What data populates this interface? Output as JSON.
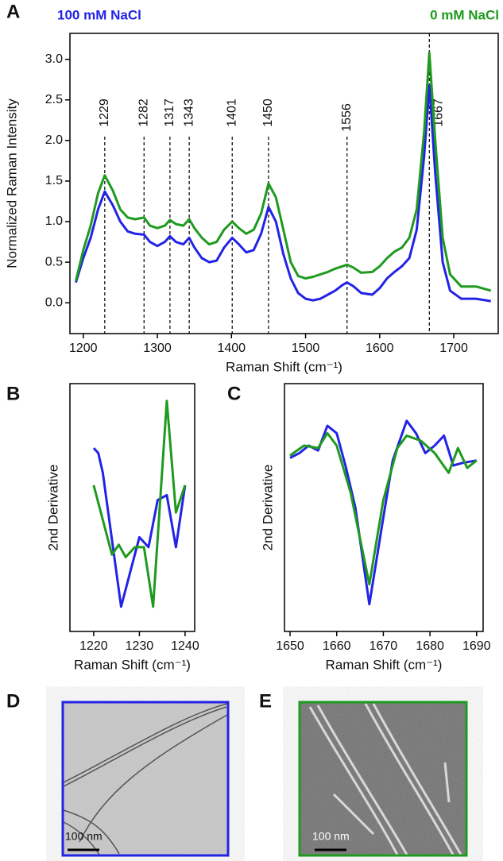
{
  "chart_data": [
    {
      "type": "line",
      "panel": "A",
      "xlabel": "Raman Shift (cm⁻¹)",
      "ylabel": "Normalized Raman Intensity",
      "xlim": [
        1182,
        1760
      ],
      "ylim": [
        -0.38,
        3.32
      ],
      "xticks": [
        1200,
        1300,
        1400,
        1500,
        1600,
        1700
      ],
      "yticks": [
        {
          "value": 0,
          "label": "0.0"
        },
        0.5,
        {
          "value": 1,
          "label": "1.0"
        },
        1.5,
        {
          "value": 2,
          "label": "2.0"
        },
        2.5,
        {
          "value": 3,
          "label": "3.0"
        }
      ],
      "peaks": [
        1229,
        1282,
        1317,
        1343,
        1401,
        1450,
        1556,
        1667
      ],
      "x": [
        1190,
        1200,
        1210,
        1220,
        1229,
        1240,
        1250,
        1260,
        1270,
        1282,
        1290,
        1300,
        1310,
        1317,
        1325,
        1335,
        1343,
        1350,
        1360,
        1370,
        1380,
        1390,
        1401,
        1410,
        1420,
        1430,
        1440,
        1450,
        1460,
        1470,
        1480,
        1490,
        1500,
        1510,
        1520,
        1530,
        1540,
        1550,
        1556,
        1565,
        1575,
        1590,
        1600,
        1610,
        1620,
        1630,
        1640,
        1650,
        1660,
        1667,
        1675,
        1685,
        1695,
        1710,
        1730,
        1750
      ],
      "series": [
        {
          "name": "100 mM NaCl",
          "color": "#2323e6",
          "values": [
            0.25,
            0.55,
            0.8,
            1.15,
            1.37,
            1.2,
            1.0,
            0.88,
            0.85,
            0.84,
            0.75,
            0.7,
            0.75,
            0.82,
            0.75,
            0.72,
            0.8,
            0.68,
            0.55,
            0.5,
            0.52,
            0.68,
            0.8,
            0.72,
            0.62,
            0.65,
            0.85,
            1.18,
            1.0,
            0.6,
            0.3,
            0.12,
            0.05,
            0.03,
            0.05,
            0.1,
            0.15,
            0.22,
            0.25,
            0.2,
            0.12,
            0.1,
            0.18,
            0.3,
            0.38,
            0.45,
            0.55,
            0.9,
            1.8,
            2.68,
            1.6,
            0.5,
            0.15,
            0.05,
            0.05,
            0.02
          ]
        },
        {
          "name": "0 mM NaCl",
          "color": "#1e9a1e",
          "values": [
            0.27,
            0.65,
            0.95,
            1.35,
            1.57,
            1.38,
            1.15,
            1.05,
            1.03,
            1.05,
            0.95,
            0.92,
            0.95,
            1.02,
            0.97,
            0.95,
            1.03,
            0.92,
            0.8,
            0.72,
            0.75,
            0.9,
            1.0,
            0.92,
            0.85,
            0.9,
            1.1,
            1.47,
            1.3,
            0.9,
            0.5,
            0.33,
            0.3,
            0.32,
            0.35,
            0.38,
            0.42,
            0.45,
            0.47,
            0.43,
            0.37,
            0.38,
            0.45,
            0.55,
            0.63,
            0.68,
            0.8,
            1.15,
            2.1,
            3.08,
            2.0,
            0.8,
            0.35,
            0.2,
            0.2,
            0.15
          ]
        }
      ]
    },
    {
      "type": "line",
      "panel": "B",
      "xlabel": "Raman Shift (cm⁻¹)",
      "ylabel": "2nd Derivative",
      "xlim": [
        1214.8,
        1242.1
      ],
      "ylim": [
        0,
        1
      ],
      "xticks": [
        1220,
        1230,
        1240
      ],
      "series": [
        {
          "color": "#2323e6",
          "x": [
            1220,
            1221,
            1222,
            1224,
            1226,
            1228,
            1230,
            1232,
            1234,
            1236,
            1238,
            1240
          ],
          "values": [
            0.74,
            0.72,
            0.64,
            0.37,
            0.1,
            0.24,
            0.38,
            0.34,
            0.53,
            0.55,
            0.34,
            0.59
          ]
        },
        {
          "color": "#1e9a1e",
          "x": [
            1220,
            1222,
            1224,
            1225.5,
            1227,
            1229,
            1231,
            1233,
            1236,
            1238,
            1240
          ],
          "values": [
            0.59,
            0.45,
            0.31,
            0.35,
            0.3,
            0.34,
            0.34,
            0.1,
            0.93,
            0.48,
            0.59
          ]
        }
      ]
    },
    {
      "type": "line",
      "panel": "C",
      "xlabel": "Raman Shift (cm⁻¹)",
      "ylabel": "2nd Derivative",
      "xlim": [
        1648.8,
        1691.4
      ],
      "ylim": [
        0,
        1
      ],
      "xticks": [
        1650,
        1660,
        1670,
        1680,
        1690
      ],
      "series": [
        {
          "color": "#2323e6",
          "x": [
            1650,
            1652,
            1654,
            1656,
            1658,
            1660,
            1662,
            1664,
            1667,
            1670,
            1672,
            1675,
            1677,
            1679,
            1681,
            1683,
            1685,
            1687,
            1690
          ],
          "values": [
            0.7,
            0.72,
            0.75,
            0.73,
            0.83,
            0.8,
            0.66,
            0.5,
            0.11,
            0.46,
            0.69,
            0.85,
            0.8,
            0.72,
            0.75,
            0.79,
            0.67,
            0.68,
            0.69
          ]
        },
        {
          "color": "#1e9a1e",
          "x": [
            1650,
            1653,
            1656,
            1658,
            1660,
            1663,
            1667,
            1670,
            1673,
            1675,
            1678,
            1681,
            1684,
            1686,
            1688,
            1690
          ],
          "values": [
            0.71,
            0.75,
            0.74,
            0.8,
            0.75,
            0.56,
            0.19,
            0.53,
            0.74,
            0.79,
            0.77,
            0.72,
            0.64,
            0.74,
            0.66,
            0.69
          ]
        }
      ]
    }
  ],
  "micrographs": [
    {
      "panel": "D",
      "scale_bar": "100 nm",
      "border": "#2323e6"
    },
    {
      "panel": "E",
      "scale_bar": "100 nm",
      "border": "#1e9a1e"
    }
  ]
}
